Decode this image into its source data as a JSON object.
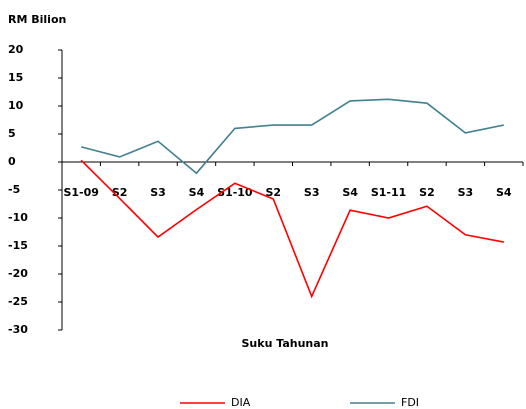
{
  "chart_data": {
    "type": "line",
    "y_label": "RM Bilion",
    "x_label": "Suku Tahunan",
    "categories": [
      "S1-09",
      "S2",
      "S3",
      "S4",
      "S1-10",
      "S2",
      "S3",
      "S4",
      "S1-11",
      "S2",
      "S3",
      "S4"
    ],
    "series": [
      {
        "name": "DIA",
        "color": "#ff0000",
        "values": [
          0.3,
          -6.5,
          -13.4,
          -8.5,
          -3.8,
          -6.6,
          -24.0,
          -8.6,
          -10.0,
          -7.9,
          -13.0,
          -14.3
        ]
      },
      {
        "name": "FDI",
        "color": "#41808f",
        "values": [
          2.7,
          0.9,
          3.7,
          -2.0,
          6.0,
          6.6,
          6.6,
          10.9,
          11.2,
          10.5,
          5.2,
          6.6
        ]
      }
    ],
    "ylim": [
      -30,
      20
    ],
    "yticks": [
      20,
      15,
      10,
      5,
      0,
      -5,
      -10,
      -15,
      -20,
      -25,
      -30
    ],
    "legend": "bottom"
  }
}
